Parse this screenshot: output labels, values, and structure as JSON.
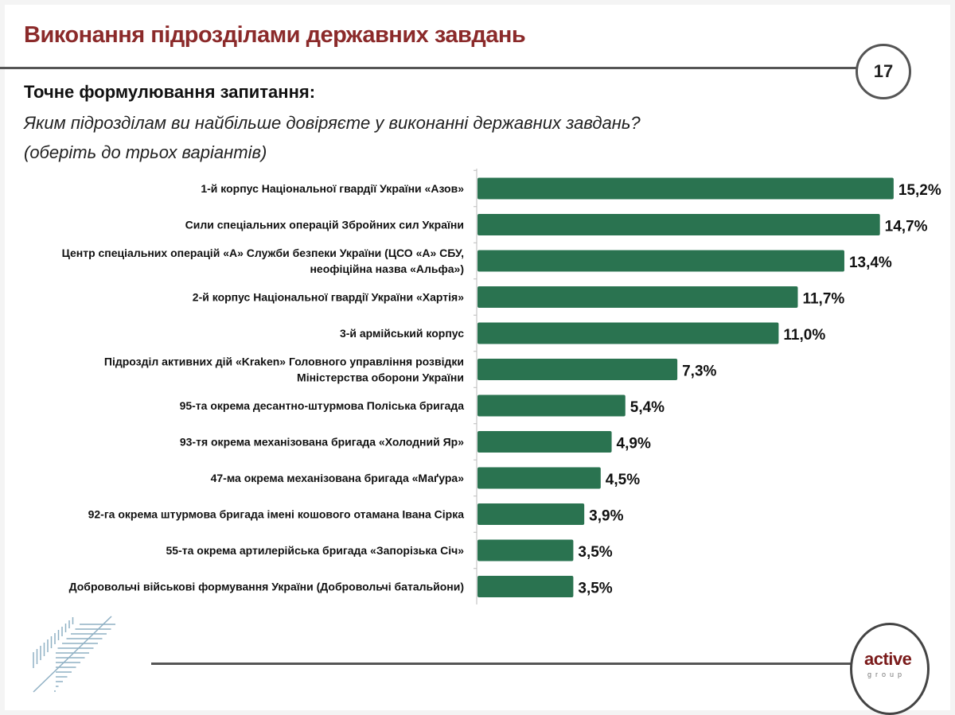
{
  "header": {
    "title": "Виконання підрозділами державних завдань",
    "page_number": "17"
  },
  "question": {
    "label": "Точне формулювання запитання:",
    "text": "Яким підрозділам ви найбільше довіряєте у виконанні державних завдань?",
    "note": "(оберіть до трьох варіантів)"
  },
  "chart_data": {
    "type": "bar",
    "orientation": "horizontal",
    "categories": [
      [
        "1-й корпус Національної гвардії України «Азов»"
      ],
      [
        "Сили спеціальних операцій Збройних сил України"
      ],
      [
        "Центр спеціальних операцій «А» Служби безпеки України (ЦСО «А» СБУ,",
        "неофіційна назва «Альфа»)"
      ],
      [
        "2-й корпус Національної гвардії України «Хартія»"
      ],
      [
        "3-й армійський корпус"
      ],
      [
        "Підрозділ активних дій «Kraken» Головного управління розвідки",
        "Міністерства оборони України"
      ],
      [
        "95-та окрема десантно-штурмова Поліська бригада"
      ],
      [
        "93-тя окрема механізована бригада «Холодний Яр»"
      ],
      [
        "47-ма окрема механізована бригада «Маґура»"
      ],
      [
        "92-га окрема штурмова бригада імені кошового отамана Івана Сірка"
      ],
      [
        "55-та окрема артилерійська бригада «Запорізька Січ»"
      ],
      [
        "Добровольчі військові формування України (Добровольчі батальйони)"
      ]
    ],
    "values": [
      15.2,
      14.7,
      13.4,
      11.7,
      11.0,
      7.3,
      5.4,
      4.9,
      4.5,
      3.9,
      3.5,
      3.5
    ],
    "data_labels": [
      "15,2%",
      "14,7%",
      "13,4%",
      "11,7%",
      "11,0%",
      "7,3%",
      "5,4%",
      "4,9%",
      "4,5%",
      "3,9%",
      "3,5%",
      "3,5%"
    ],
    "unit": "%",
    "grid": false,
    "bar_color": "#2a7350"
  },
  "footer": {
    "logo_main": "active",
    "logo_sub": "group"
  },
  "colors": {
    "title": "#8b2a2a",
    "bar": "#2a7350",
    "line": "#555555"
  }
}
